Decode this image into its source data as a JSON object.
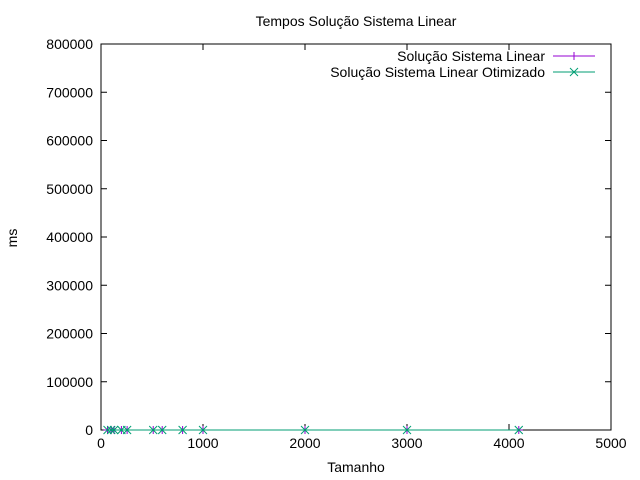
{
  "chart_data": {
    "type": "line",
    "title": "Tempos Solução Sistema Linear",
    "xlabel": "Tamanho",
    "ylabel": "ms",
    "xlim": [
      0,
      5000
    ],
    "ylim": [
      0,
      800000
    ],
    "xticks": [
      0,
      1000,
      2000,
      3000,
      4000,
      5000
    ],
    "yticks": [
      0,
      100000,
      200000,
      300000,
      400000,
      500000,
      600000,
      700000,
      800000
    ],
    "grid": false,
    "legend_position": "top-right",
    "series": [
      {
        "name": "Solução Sistema Linear",
        "color": "#9400d3",
        "marker": "plus",
        "x": [
          64,
          100,
          128,
          200,
          256,
          512,
          600,
          800,
          1000,
          2000,
          3000,
          4096
        ],
        "y": [
          0,
          0,
          0,
          0,
          0,
          0,
          0,
          0,
          0,
          0,
          0,
          0
        ]
      },
      {
        "name": "Solução Sistema Linear Otimizado",
        "color": "#009e73",
        "marker": "cross",
        "x": [
          64,
          100,
          128,
          200,
          256,
          512,
          600,
          800,
          1000,
          2000,
          3000,
          4096
        ],
        "y": [
          0,
          0,
          0,
          0,
          0,
          0,
          0,
          0,
          0,
          0,
          0,
          0
        ]
      }
    ]
  }
}
